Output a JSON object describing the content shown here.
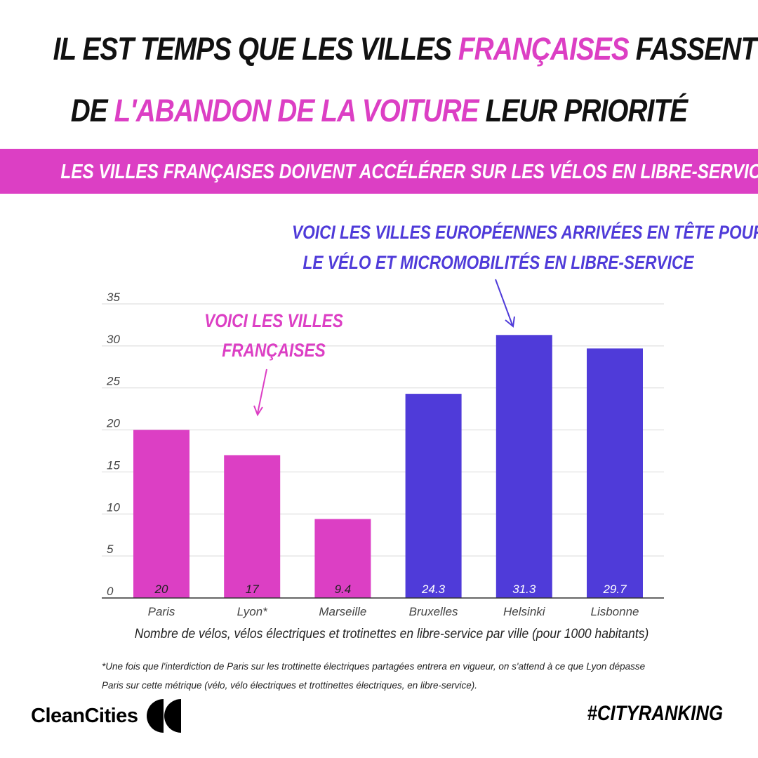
{
  "headline": {
    "line1_a": "IL EST TEMPS QUE LES VILLES ",
    "line1_b": "FRANÇAISES",
    "line1_c": " FASSENT",
    "line2_a": "DE ",
    "line2_b": "L'ABANDON DE LA VOITURE",
    "line2_c": " LEUR PRIORITÉ"
  },
  "banner": {
    "text": "LES VILLES FRANÇAISES DOIVENT ACCÉLÉRER SUR LES VÉLOS EN LIBRE-SERVICE"
  },
  "callouts": {
    "european_line1": "VOICI LES VILLES EUROPÉENNES ARRIVÉES EN TÊTE POUR",
    "european_line2": "LE VÉLO ET MICROMOBILITÉS EN LIBRE-SERVICE",
    "french_line1": "VOICI LES VILLES",
    "french_line2": "FRANÇAISES"
  },
  "colors": {
    "pink": "#dc3fc4",
    "purple": "#4f3bd9",
    "grid": "#d9d9d9",
    "axis": "#333333"
  },
  "chart_data": {
    "type": "bar",
    "categories": [
      "Paris",
      "Lyon*",
      "Marseille",
      "Bruxelles",
      "Helsinki",
      "Lisbonne"
    ],
    "values": [
      20,
      17,
      9.4,
      24.3,
      31.3,
      29.7
    ],
    "value_labels": [
      "20",
      "17",
      "9.4",
      "24.3",
      "31.3",
      "29.7"
    ],
    "bar_colors": [
      "#dc3fc4",
      "#dc3fc4",
      "#dc3fc4",
      "#4f3bd9",
      "#4f3bd9",
      "#4f3bd9"
    ],
    "ylim": [
      0,
      35
    ],
    "yticks": [
      0,
      5,
      10,
      15,
      20,
      25,
      30,
      35
    ],
    "grid": true,
    "xlabel": "Nombre de vélos, vélos électriques et trotinettes en libre-service par ville (pour 1000 habitants)",
    "ylabel": ""
  },
  "footnote": {
    "line1": "*Une fois que l'interdiction de Paris sur les trottinette  électriques partagées entrera en vigueur, on s'attend à ce que Lyon dépasse",
    "line2": "Paris sur cette métrique (vélo, vélo électriques et trottinettes électriques, en libre-service)."
  },
  "brand": {
    "logo_text": "CleanCities",
    "logo_icon": "double-quote-mark-icon",
    "hashtag": "#CITYRANKING"
  }
}
